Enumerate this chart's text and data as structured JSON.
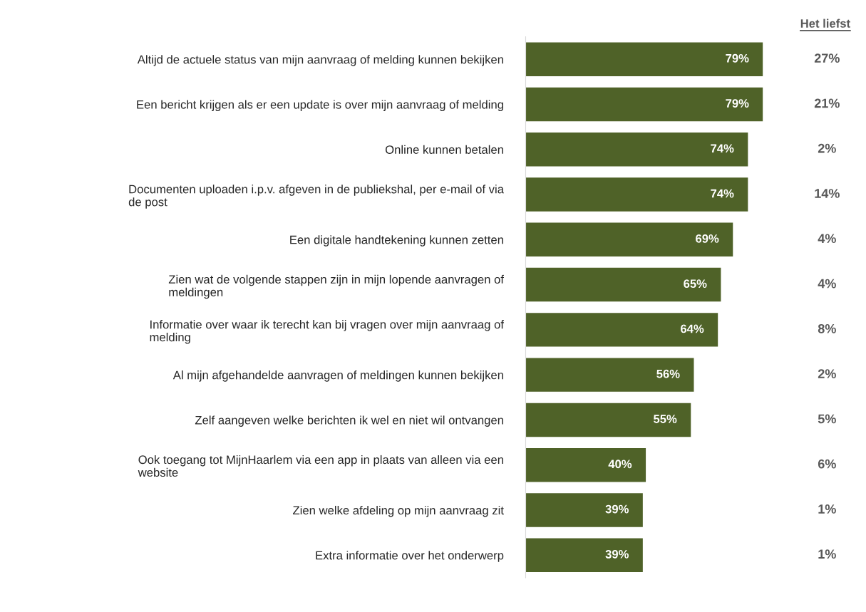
{
  "chart_data": {
    "type": "bar",
    "orientation": "horizontal",
    "categories": [
      "Altijd de actuele status van mijn aanvraag of melding kunnen bekijken",
      "Een bericht krijgen als er een update is over mijn aanvraag of melding",
      "Online kunnen betalen",
      "Documenten uploaden i.p.v. afgeven in de publiekshal, per e-mail of via\nde post",
      "Een digitale handtekening kunnen zetten",
      "Zien wat de volgende stappen zijn in mijn lopende aanvragen of\nmeldingen",
      "Informatie over waar ik terecht kan bij vragen over mijn aanvraag of\nmelding",
      "Al mijn afgehandelde aanvragen of meldingen kunnen bekijken",
      "Zelf aangeven welke berichten ik wel en niet wil ontvangen",
      "Ook toegang tot MijnHaarlem via een app in plaats van alleen via een\nwebsite",
      "Zien welke afdeling op mijn aanvraag zit",
      "Extra informatie over het onderwerp"
    ],
    "values": [
      79,
      79,
      74,
      74,
      69,
      65,
      64,
      56,
      55,
      40,
      39,
      39
    ],
    "color": "#4f6228",
    "data_labels": true,
    "value_labels": [
      "79%",
      "79%",
      "74%",
      "74%",
      "69%",
      "65%",
      "64%",
      "56%",
      "55%",
      "40%",
      "39%",
      "39%"
    ],
    "annotations": [
      "Het liefst",
      "27%",
      "21%",
      "2%",
      "14%",
      "4%",
      "4%",
      "8%",
      "2%",
      "5%",
      "6%",
      "1%",
      "1%"
    ],
    "grid": false,
    "legend": false,
    "tick_labels": "y"
  }
}
